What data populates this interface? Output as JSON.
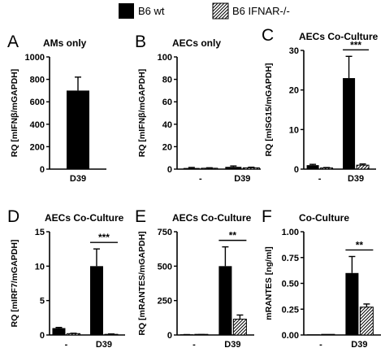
{
  "legend": [
    {
      "name": "B6 wt",
      "style": "solid"
    },
    {
      "name": "B6 IFNAR-/-",
      "style": "hatched"
    }
  ],
  "colors": {
    "bar": "#000000",
    "background": "#ffffff"
  },
  "chart_data": [
    {
      "panel": "A",
      "type": "bar",
      "title": "AMs only",
      "ylabel": "RQ [mIFNβ/mGAPDH]",
      "ylim": [
        0,
        1000
      ],
      "yticks": [
        0,
        200,
        400,
        600,
        800,
        1000
      ],
      "categories": [
        "D39"
      ],
      "series": [
        {
          "name": "B6 wt",
          "style": "solid",
          "values": [
            700
          ],
          "errors": [
            120
          ]
        }
      ],
      "significance": []
    },
    {
      "panel": "B",
      "type": "bar",
      "title": "AECs only",
      "ylabel": "RQ [mIFNβ/mGAPDH]",
      "ylim": [
        0,
        100
      ],
      "yticks": [
        0,
        20,
        40,
        60,
        80,
        100
      ],
      "categories": [
        "-",
        "D39"
      ],
      "series": [
        {
          "name": "B6 wt",
          "style": "solid",
          "values": [
            1,
            2
          ],
          "errors": [
            0.5,
            0.8
          ]
        },
        {
          "name": "B6 IFNAR-/-",
          "style": "hatched",
          "values": [
            0.8,
            1.2
          ],
          "errors": [
            0.4,
            0.5
          ]
        }
      ],
      "significance": []
    },
    {
      "panel": "C",
      "type": "bar",
      "title": "AECs Co-Culture",
      "ylabel": "RQ [mISG15/mGAPDH]",
      "ylim": [
        0,
        30
      ],
      "yticks": [
        0,
        10,
        20,
        30
      ],
      "categories": [
        "-",
        "D39"
      ],
      "series": [
        {
          "name": "B6 wt",
          "style": "solid",
          "values": [
            1,
            23
          ],
          "errors": [
            0.2,
            5.5
          ]
        },
        {
          "name": "B6 IFNAR-/-",
          "style": "hatched",
          "values": [
            0.3,
            1
          ],
          "errors": [
            0.1,
            0.3
          ]
        }
      ],
      "significance": [
        {
          "category": "D39",
          "label": "***"
        }
      ]
    },
    {
      "panel": "D",
      "type": "bar",
      "title": "AECs Co-Culture",
      "ylabel": "RQ [mIRF7/mGAPDH]",
      "ylim": [
        0,
        15
      ],
      "yticks": [
        0,
        5,
        10,
        15
      ],
      "categories": [
        "-",
        "D39"
      ],
      "series": [
        {
          "name": "B6 wt",
          "style": "solid",
          "values": [
            1,
            10
          ],
          "errors": [
            0.1,
            2.5
          ]
        },
        {
          "name": "B6 IFNAR-/-",
          "style": "hatched",
          "values": [
            0.2,
            0.1
          ],
          "errors": [
            0.05,
            0.05
          ]
        }
      ],
      "significance": [
        {
          "category": "D39",
          "label": "***"
        }
      ]
    },
    {
      "panel": "E",
      "type": "bar",
      "title": "AECs Co-Culture",
      "ylabel": "RQ [mRANTES/mGAPDH]",
      "ylim": [
        0,
        750
      ],
      "yticks": [
        0,
        250,
        500,
        750
      ],
      "categories": [
        "-",
        "D39"
      ],
      "series": [
        {
          "name": "B6 wt",
          "style": "solid",
          "values": [
            2,
            500
          ],
          "errors": [
            1,
            140
          ]
        },
        {
          "name": "B6 IFNAR-/-",
          "style": "hatched",
          "values": [
            2,
            115
          ],
          "errors": [
            1,
            30
          ]
        }
      ],
      "significance": [
        {
          "category": "D39",
          "label": "**"
        }
      ]
    },
    {
      "panel": "F",
      "type": "bar",
      "title": "Co-Culture",
      "ylabel": "mRANTES [ng/ml]",
      "ylim": [
        0,
        1.0
      ],
      "yticks": [
        "0.00",
        "0.25",
        "0.50",
        "0.75",
        "1.00"
      ],
      "categories": [
        "-",
        "D39"
      ],
      "series": [
        {
          "name": "B6 wt",
          "style": "solid",
          "values": [
            0,
            0.6
          ],
          "errors": [
            0,
            0.16
          ]
        },
        {
          "name": "B6 IFNAR-/-",
          "style": "hatched",
          "values": [
            0,
            0.27
          ],
          "errors": [
            0,
            0.03
          ]
        }
      ],
      "significance": [
        {
          "category": "D39",
          "label": "**"
        }
      ]
    }
  ]
}
